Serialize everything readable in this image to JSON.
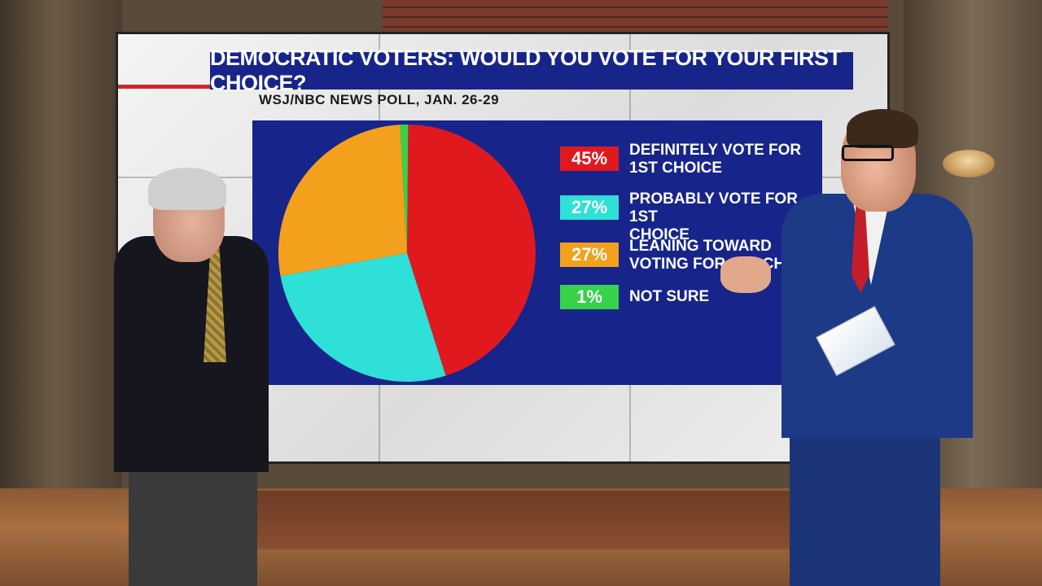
{
  "graphic": {
    "title": "DEMOCRATIC VOTERS: WOULD YOU VOTE FOR YOUR FIRST CHOICE?",
    "source": "WSJ/NBC NEWS POLL, JAN. 26-29"
  },
  "chart_data": {
    "type": "pie",
    "title": "DEMOCRATIC VOTERS: WOULD YOU VOTE FOR YOUR FIRST CHOICE?",
    "subtitle": "WSJ/NBC NEWS POLL, JAN. 26-29",
    "slices": [
      {
        "label": "DEFINITELY VOTE FOR 1ST CHOICE",
        "value": 45,
        "display": "45%",
        "color": "#e0191e"
      },
      {
        "label": "PROBABLY VOTE FOR 1ST CHOICE",
        "value": 27,
        "display": "27%",
        "color": "#2ee0d8"
      },
      {
        "label": "LEANING TOWARD VOTING FOR 1ST CHOICE",
        "value": 27,
        "display": "27%",
        "color": "#f3a01c"
      },
      {
        "label": "NOT SURE",
        "value": 1,
        "display": "1%",
        "color": "#35d24a"
      }
    ],
    "legend": [
      {
        "badge": "45%",
        "lines": [
          "DEFINITELY VOTE FOR",
          "1ST CHOICE"
        ],
        "color": "#e0191e"
      },
      {
        "badge": "27%",
        "lines": [
          "PROBABLY VOTE FOR 1ST",
          "CHOICE"
        ],
        "color": "#2ee0d8"
      },
      {
        "badge": "27%",
        "lines": [
          "LEANING TOWARD",
          "VOTING FOR 1ST CHOICE"
        ],
        "color": "#f3a01c"
      },
      {
        "badge": "1%",
        "lines": [
          "NOT SURE"
        ],
        "color": "#35d24a"
      }
    ],
    "legend_position": "right",
    "panel_color": "#17258a"
  }
}
